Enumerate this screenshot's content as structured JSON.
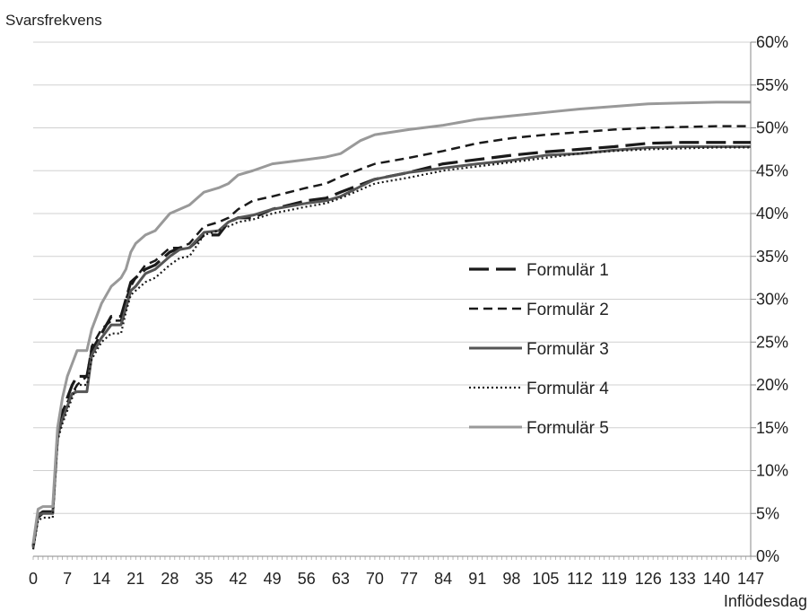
{
  "chart_data": {
    "type": "line",
    "title": "",
    "ylabel": "Svarsfrekvens",
    "xlabel": "Inflödesdag",
    "xlim": [
      0,
      147
    ],
    "ylim": [
      0,
      60
    ],
    "x_ticks": [
      0,
      7,
      14,
      21,
      28,
      35,
      42,
      49,
      56,
      63,
      70,
      77,
      84,
      91,
      98,
      105,
      112,
      119,
      126,
      133,
      140,
      147
    ],
    "y_ticks": [
      "0%",
      "5%",
      "10%",
      "15%",
      "20%",
      "25%",
      "30%",
      "35%",
      "40%",
      "45%",
      "50%",
      "55%",
      "60%"
    ],
    "y_axis_side": "right",
    "grid": "horizontal",
    "legend_position": "center-right",
    "series": [
      {
        "name": "Formulär 1",
        "color": "#1a1a1a",
        "dash": "long-dash",
        "points": [
          [
            0,
            1.2
          ],
          [
            1,
            4.8
          ],
          [
            2,
            5.2
          ],
          [
            4,
            5.2
          ],
          [
            5,
            14
          ],
          [
            6,
            16.5
          ],
          [
            7,
            18.5
          ],
          [
            8,
            20
          ],
          [
            9,
            21
          ],
          [
            11,
            21
          ],
          [
            12,
            24
          ],
          [
            14,
            26
          ],
          [
            16,
            28
          ],
          [
            17,
            28
          ],
          [
            18,
            28
          ],
          [
            19,
            30
          ],
          [
            20,
            32
          ],
          [
            21,
            32.5
          ],
          [
            23,
            33.5
          ],
          [
            25,
            34
          ],
          [
            28,
            35.5
          ],
          [
            30,
            36
          ],
          [
            32,
            36
          ],
          [
            35,
            37.5
          ],
          [
            38,
            37.5
          ],
          [
            40,
            39
          ],
          [
            42,
            39.5
          ],
          [
            45,
            39.5
          ],
          [
            49,
            40.5
          ],
          [
            56,
            41.5
          ],
          [
            60,
            41.8
          ],
          [
            63,
            42.5
          ],
          [
            70,
            44
          ],
          [
            77,
            44.8
          ],
          [
            84,
            45.8
          ],
          [
            91,
            46.3
          ],
          [
            98,
            46.8
          ],
          [
            105,
            47.2
          ],
          [
            112,
            47.5
          ],
          [
            119,
            47.8
          ],
          [
            126,
            48.2
          ],
          [
            133,
            48.3
          ],
          [
            140,
            48.3
          ],
          [
            147,
            48.3
          ]
        ]
      },
      {
        "name": "Formulär 2",
        "color": "#1a1a1a",
        "dash": "short-dash",
        "points": [
          [
            0,
            1.2
          ],
          [
            1,
            4.5
          ],
          [
            2,
            5
          ],
          [
            4,
            5
          ],
          [
            5,
            14
          ],
          [
            6,
            17
          ],
          [
            7,
            18
          ],
          [
            8,
            19
          ],
          [
            9,
            20
          ],
          [
            11,
            21
          ],
          [
            12,
            24.5
          ],
          [
            14,
            26.5
          ],
          [
            16,
            27.5
          ],
          [
            18,
            27.5
          ],
          [
            19,
            30
          ],
          [
            20,
            31.5
          ],
          [
            21,
            32.5
          ],
          [
            23,
            34
          ],
          [
            25,
            34.5
          ],
          [
            28,
            36
          ],
          [
            30,
            36
          ],
          [
            32,
            36.5
          ],
          [
            35,
            38.5
          ],
          [
            38,
            39
          ],
          [
            40,
            39.5
          ],
          [
            42,
            40.5
          ],
          [
            45,
            41.5
          ],
          [
            49,
            42
          ],
          [
            56,
            43
          ],
          [
            60,
            43.5
          ],
          [
            63,
            44.3
          ],
          [
            70,
            45.8
          ],
          [
            77,
            46.5
          ],
          [
            84,
            47.3
          ],
          [
            91,
            48.2
          ],
          [
            98,
            48.8
          ],
          [
            105,
            49.2
          ],
          [
            112,
            49.5
          ],
          [
            119,
            49.8
          ],
          [
            126,
            50
          ],
          [
            133,
            50.1
          ],
          [
            140,
            50.2
          ],
          [
            147,
            50.2
          ]
        ]
      },
      {
        "name": "Formulär 3",
        "color": "#555555",
        "dash": "solid",
        "points": [
          [
            0,
            1
          ],
          [
            1,
            4.8
          ],
          [
            2,
            5
          ],
          [
            4,
            5
          ],
          [
            5,
            14
          ],
          [
            6,
            16
          ],
          [
            7,
            17.5
          ],
          [
            8,
            19
          ],
          [
            9,
            19.2
          ],
          [
            11,
            19.2
          ],
          [
            12,
            23.5
          ],
          [
            14,
            25.5
          ],
          [
            16,
            27
          ],
          [
            18,
            27
          ],
          [
            19,
            29
          ],
          [
            20,
            31
          ],
          [
            21,
            31.5
          ],
          [
            23,
            33
          ],
          [
            25,
            33.5
          ],
          [
            28,
            35
          ],
          [
            30,
            35.8
          ],
          [
            32,
            36
          ],
          [
            35,
            37.8
          ],
          [
            38,
            38
          ],
          [
            40,
            39
          ],
          [
            42,
            39.5
          ],
          [
            45,
            39.8
          ],
          [
            49,
            40.5
          ],
          [
            56,
            41.2
          ],
          [
            60,
            41.5
          ],
          [
            63,
            42
          ],
          [
            70,
            44
          ],
          [
            77,
            44.8
          ],
          [
            84,
            45.3
          ],
          [
            91,
            45.8
          ],
          [
            98,
            46.2
          ],
          [
            105,
            46.8
          ],
          [
            112,
            47
          ],
          [
            119,
            47.4
          ],
          [
            126,
            47.7
          ],
          [
            133,
            47.8
          ],
          [
            140,
            47.8
          ],
          [
            147,
            47.8
          ]
        ]
      },
      {
        "name": "Formulär 4",
        "color": "#1a1a1a",
        "dash": "dotted",
        "points": [
          [
            0,
            0.8
          ],
          [
            1,
            4.2
          ],
          [
            2,
            4.5
          ],
          [
            4,
            4.5
          ],
          [
            5,
            13.5
          ],
          [
            6,
            15.5
          ],
          [
            7,
            17
          ],
          [
            8,
            18.5
          ],
          [
            9,
            20
          ],
          [
            11,
            20
          ],
          [
            12,
            23
          ],
          [
            14,
            25
          ],
          [
            16,
            26
          ],
          [
            18,
            26
          ],
          [
            19,
            28.5
          ],
          [
            20,
            30.5
          ],
          [
            21,
            31
          ],
          [
            23,
            32
          ],
          [
            25,
            32.5
          ],
          [
            28,
            34
          ],
          [
            30,
            34.8
          ],
          [
            32,
            35
          ],
          [
            35,
            37.5
          ],
          [
            38,
            38
          ],
          [
            40,
            38.5
          ],
          [
            42,
            39
          ],
          [
            45,
            39.3
          ],
          [
            49,
            40
          ],
          [
            56,
            40.8
          ],
          [
            60,
            41.2
          ],
          [
            63,
            41.8
          ],
          [
            70,
            43.5
          ],
          [
            77,
            44.2
          ],
          [
            84,
            45
          ],
          [
            91,
            45.5
          ],
          [
            98,
            46
          ],
          [
            105,
            46.5
          ],
          [
            112,
            47
          ],
          [
            119,
            47.3
          ],
          [
            126,
            47.5
          ],
          [
            133,
            47.6
          ],
          [
            140,
            47.7
          ],
          [
            147,
            47.7
          ]
        ]
      },
      {
        "name": "Formulär 5",
        "color": "#999999",
        "dash": "solid",
        "points": [
          [
            0,
            1.5
          ],
          [
            1,
            5.5
          ],
          [
            2,
            5.8
          ],
          [
            4,
            5.8
          ],
          [
            5,
            15
          ],
          [
            6,
            18.5
          ],
          [
            7,
            21
          ],
          [
            8,
            22.5
          ],
          [
            9,
            24
          ],
          [
            11,
            24
          ],
          [
            12,
            26.5
          ],
          [
            14,
            29.5
          ],
          [
            16,
            31.5
          ],
          [
            18,
            32.5
          ],
          [
            19,
            33.5
          ],
          [
            20,
            35.5
          ],
          [
            21,
            36.5
          ],
          [
            23,
            37.5
          ],
          [
            25,
            38
          ],
          [
            28,
            40
          ],
          [
            30,
            40.5
          ],
          [
            32,
            41
          ],
          [
            35,
            42.5
          ],
          [
            38,
            43
          ],
          [
            40,
            43.5
          ],
          [
            42,
            44.5
          ],
          [
            45,
            45
          ],
          [
            49,
            45.8
          ],
          [
            56,
            46.3
          ],
          [
            60,
            46.6
          ],
          [
            63,
            47
          ],
          [
            67,
            48.5
          ],
          [
            70,
            49.2
          ],
          [
            77,
            49.8
          ],
          [
            84,
            50.3
          ],
          [
            91,
            51
          ],
          [
            98,
            51.4
          ],
          [
            105,
            51.8
          ],
          [
            112,
            52.2
          ],
          [
            119,
            52.5
          ],
          [
            126,
            52.8
          ],
          [
            133,
            52.9
          ],
          [
            140,
            53
          ],
          [
            147,
            53
          ]
        ]
      }
    ]
  }
}
